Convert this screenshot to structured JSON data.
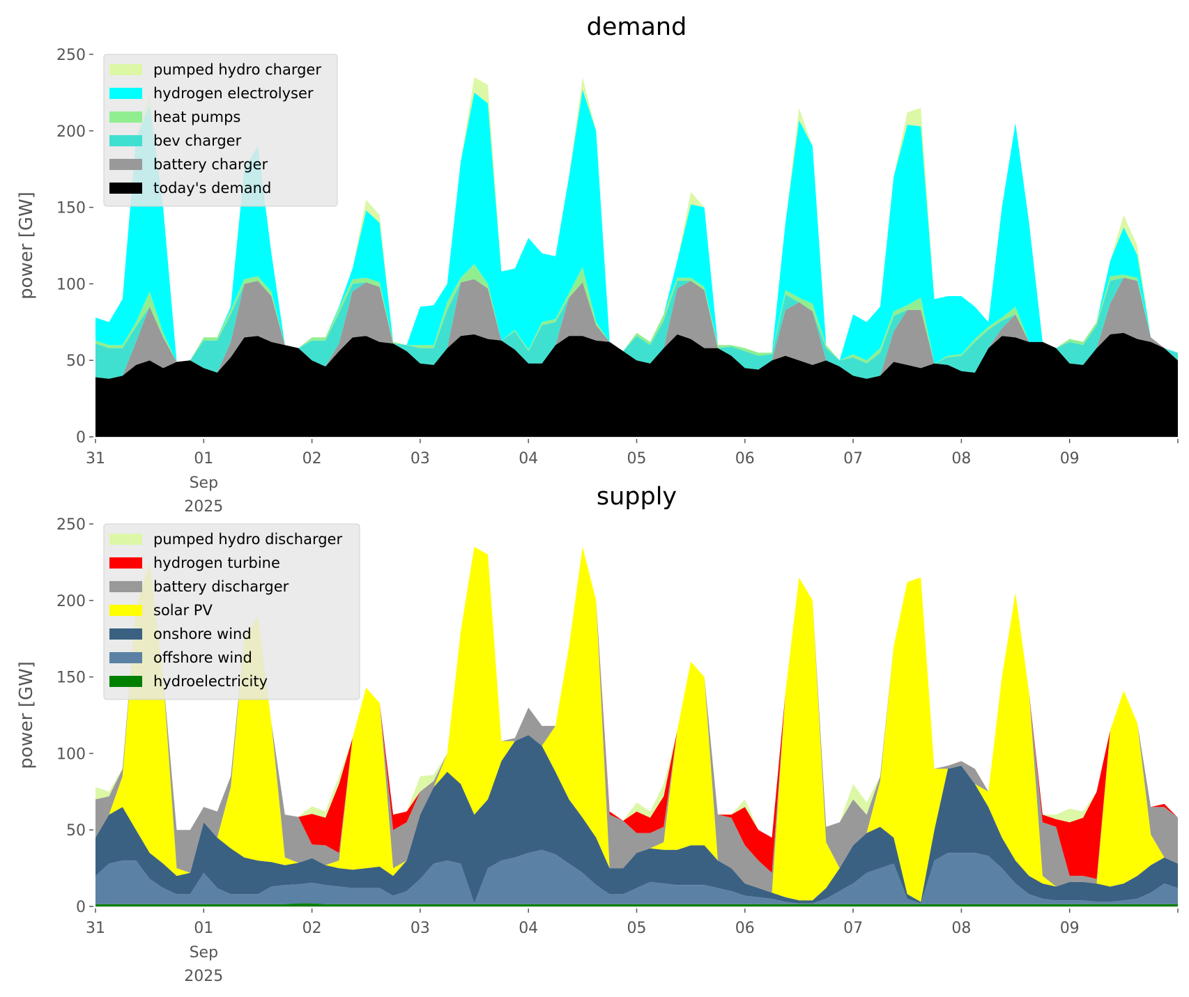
{
  "chart_data": [
    {
      "type": "area",
      "stacked": true,
      "title": "demand",
      "ylabel": "power [GW]",
      "xlabel": "",
      "ylim": [
        0,
        250
      ],
      "yticks": [
        0,
        50,
        100,
        150,
        200,
        250
      ],
      "xlim": [
        "2025-08-31T00:00",
        "2025-09-10T00:00"
      ],
      "xtick_labels": [
        "31",
        "01",
        "02",
        "03",
        "04",
        "05",
        "06",
        "07",
        "08",
        "09"
      ],
      "xtick_sublabels": {
        "month": "Sep",
        "year": "2025"
      },
      "grid": false,
      "legend_placement": "top-left",
      "series": [
        {
          "name": "today's demand",
          "color": "#000000",
          "values": [
            39,
            38,
            40,
            47,
            50,
            45,
            49,
            50,
            45,
            42,
            52,
            65,
            66,
            62,
            60,
            58,
            50,
            46,
            56,
            65,
            66,
            62,
            61,
            56,
            48,
            47,
            58,
            66,
            67,
            64,
            63,
            57,
            48,
            48,
            60,
            66,
            66,
            63,
            62,
            56,
            50,
            48,
            58,
            67,
            64,
            58,
            58,
            53,
            45,
            44,
            50,
            53,
            50,
            47,
            50,
            46,
            40,
            38,
            40,
            49,
            47,
            45,
            48,
            47,
            43,
            42,
            58,
            66,
            65,
            62,
            62,
            58,
            48,
            47,
            58,
            67,
            68,
            64,
            62,
            58,
            50
          ]
        },
        {
          "name": "battery charger",
          "color": "#999999",
          "values": [
            0,
            0,
            0,
            15,
            35,
            20,
            0,
            0,
            0,
            0,
            10,
            35,
            36,
            30,
            0,
            0,
            0,
            0,
            5,
            30,
            35,
            36,
            0,
            0,
            0,
            0,
            0,
            35,
            36,
            33,
            0,
            0,
            0,
            0,
            0,
            25,
            35,
            10,
            0,
            0,
            0,
            0,
            0,
            30,
            38,
            38,
            0,
            0,
            0,
            0,
            0,
            30,
            38,
            35,
            0,
            0,
            0,
            0,
            0,
            20,
            36,
            38,
            0,
            0,
            0,
            0,
            0,
            5,
            15,
            0,
            0,
            0,
            0,
            0,
            0,
            20,
            36,
            38,
            3,
            0,
            0
          ]
        },
        {
          "name": "bev charger",
          "color": "#40e0d0",
          "values": [
            22,
            20,
            18,
            10,
            0,
            0,
            0,
            0,
            18,
            21,
            18,
            0,
            0,
            0,
            0,
            0,
            13,
            17,
            20,
            5,
            0,
            0,
            0,
            4,
            10,
            11,
            25,
            0,
            0,
            0,
            0,
            12,
            8,
            25,
            15,
            0,
            0,
            0,
            0,
            0,
            16,
            12,
            18,
            5,
            0,
            0,
            0,
            6,
            11,
            9,
            4,
            10,
            0,
            0,
            8,
            4,
            12,
            10,
            15,
            10,
            0,
            0,
            0,
            5,
            10,
            20,
            12,
            5,
            0,
            0,
            0,
            0,
            14,
            13,
            15,
            15,
            0,
            0,
            0,
            0,
            5
          ]
        },
        {
          "name": "heat pumps",
          "color": "#90ee90",
          "values": [
            2,
            2,
            2,
            3,
            10,
            3,
            0,
            0,
            2,
            2,
            3,
            3,
            3,
            3,
            0,
            0,
            2,
            2,
            3,
            3,
            3,
            3,
            1,
            0,
            2,
            2,
            5,
            3,
            10,
            3,
            0,
            1,
            1,
            2,
            2,
            3,
            10,
            2,
            0,
            0,
            2,
            2,
            4,
            2,
            2,
            2,
            2,
            1,
            2,
            2,
            1,
            3,
            3,
            5,
            2,
            0,
            2,
            2,
            3,
            3,
            3,
            8,
            0,
            1,
            1,
            2,
            2,
            2,
            5,
            0,
            0,
            0,
            2,
            2,
            2,
            3,
            2,
            2,
            0,
            0,
            0
          ]
        },
        {
          "name": "hydrogen electrolyser",
          "color": "#00ffff",
          "values": [
            15,
            15,
            30,
            120,
            122,
            82,
            0,
            0,
            0,
            0,
            2,
            72,
            85,
            25,
            0,
            0,
            0,
            0,
            1,
            7,
            44,
            39,
            0,
            0,
            25,
            26,
            12,
            76,
            112,
            118,
            45,
            40,
            73,
            45,
            41,
            76,
            116,
            125,
            0,
            0,
            0,
            0,
            0,
            11,
            48,
            52,
            0,
            0,
            0,
            0,
            0,
            44,
            116,
            103,
            0,
            0,
            26,
            25,
            27,
            88,
            118,
            112,
            42,
            39,
            38,
            21,
            3,
            72,
            120,
            78,
            0,
            0,
            0,
            0,
            0,
            10,
            31,
            15,
            0,
            0,
            0
          ]
        },
        {
          "name": "pumped hydro charger",
          "color": "#dcf7a6",
          "values": [
            0,
            0,
            0,
            0,
            8,
            0,
            0,
            0,
            0,
            0,
            0,
            0,
            0,
            0,
            0,
            0,
            0,
            0,
            0,
            0,
            7,
            5,
            0,
            0,
            0,
            0,
            0,
            0,
            10,
            12,
            0,
            0,
            0,
            0,
            0,
            0,
            8,
            0,
            0,
            0,
            0,
            0,
            0,
            0,
            8,
            0,
            0,
            0,
            0,
            0,
            0,
            0,
            8,
            0,
            0,
            0,
            0,
            0,
            0,
            0,
            8,
            12,
            0,
            0,
            0,
            0,
            0,
            0,
            0,
            0,
            0,
            0,
            0,
            0,
            0,
            0,
            8,
            6,
            0,
            0,
            0
          ]
        }
      ]
    },
    {
      "type": "area",
      "stacked": true,
      "title": "supply",
      "ylabel": "power [GW]",
      "xlabel": "",
      "ylim": [
        0,
        250
      ],
      "yticks": [
        0,
        50,
        100,
        150,
        200,
        250
      ],
      "xlim": [
        "2025-08-31T00:00",
        "2025-09-10T00:00"
      ],
      "xtick_labels": [
        "31",
        "01",
        "02",
        "03",
        "04",
        "05",
        "06",
        "07",
        "08",
        "09"
      ],
      "xtick_sublabels": {
        "month": "Sep",
        "year": "2025"
      },
      "grid": false,
      "legend_placement": "top-left",
      "series": [
        {
          "name": "hydroelectricity",
          "color": "#008000",
          "values": [
            1.5,
            1.5,
            1.5,
            1.5,
            1.5,
            1.5,
            1.5,
            1.5,
            1.5,
            1.5,
            1.5,
            1.5,
            1.5,
            1.5,
            1.5,
            2,
            2,
            1.5,
            1.5,
            1.5,
            1.5,
            1.5,
            1.5,
            1.5,
            1.5,
            1.5,
            1.5,
            1.5,
            1.5,
            1.5,
            1.5,
            1.5,
            1.5,
            1.5,
            1.5,
            1.5,
            1.5,
            1.5,
            1.5,
            1.5,
            1.5,
            1.5,
            1.5,
            1.5,
            1.5,
            1.5,
            1.5,
            1.5,
            1.5,
            1.5,
            1.5,
            1.5,
            1.5,
            1.5,
            1.5,
            1.5,
            1.5,
            1.5,
            1.5,
            1.5,
            1.5,
            1.5,
            1.5,
            1.5,
            1.5,
            1.5,
            1.5,
            1.5,
            1.5,
            1.5,
            1.5,
            1.5,
            1.5,
            1.5,
            1.5,
            1.5,
            1.5,
            1.5,
            1.5,
            1.5,
            1.5
          ]
        },
        {
          "name": "offshore wind",
          "color": "#5b82a5",
          "values": [
            18.5,
            26.5,
            28.5,
            28.5,
            16.5,
            10.5,
            6.5,
            6.5,
            20.5,
            10.5,
            6.5,
            6.5,
            6.5,
            11.5,
            12.5,
            12.5,
            13.5,
            12.5,
            11.5,
            10.5,
            10.5,
            10.5,
            5.5,
            8.5,
            16.5,
            26.5,
            28.5,
            26.5,
            0.5,
            23.5,
            28.5,
            30.5,
            33.5,
            35.5,
            32.5,
            26.5,
            20.5,
            12.5,
            6.5,
            6.5,
            10.5,
            14.5,
            13.5,
            12.5,
            12.5,
            12.5,
            10.5,
            8.5,
            5.5,
            4.5,
            3.5,
            1.5,
            0.5,
            0.5,
            3.5,
            8.5,
            13.5,
            20.5,
            23.5,
            26.5,
            3.5,
            0.5,
            28.5,
            33.5,
            33.5,
            33.5,
            31.5,
            23.5,
            13.5,
            6.5,
            3.5,
            2.5,
            2.5,
            2.5,
            1.5,
            1.5,
            2.5,
            3.5,
            7.5,
            13.5,
            10.5
          ]
        },
        {
          "name": "onshore wind",
          "color": "#3b6182",
          "values": [
            25,
            32,
            35,
            20,
            17,
            16,
            12,
            14,
            33,
            33,
            30,
            24,
            22,
            16,
            13,
            14,
            16,
            13,
            12,
            12,
            13,
            14,
            13,
            20,
            42,
            50,
            58,
            52,
            58,
            45,
            65,
            76,
            77,
            68,
            54,
            42,
            36,
            31,
            17,
            17,
            23,
            22,
            22,
            23,
            26,
            26,
            18,
            15,
            8,
            6,
            4,
            3,
            2,
            2,
            7,
            15,
            25,
            26,
            27,
            17,
            3,
            1,
            20,
            55,
            57,
            45,
            32,
            20,
            15,
            12,
            10,
            9,
            12,
            12,
            12,
            10,
            11,
            15,
            18,
            17,
            16
          ]
        },
        {
          "name": "solar PV",
          "color": "#ffff00",
          "values": [
            0,
            0,
            20,
            145,
            190,
            122,
            5,
            0,
            0,
            0,
            40,
            143,
            160,
            91,
            5,
            0,
            0,
            0,
            5,
            86,
            118,
            107,
            5,
            0,
            0,
            0,
            12,
            100,
            175,
            160,
            13,
            0,
            0,
            0,
            30,
            100,
            177,
            155,
            0,
            0,
            0,
            0,
            5,
            78,
            120,
            110,
            0,
            0,
            0,
            0,
            0,
            134,
            211,
            196,
            30,
            0,
            0,
            0,
            30,
            125,
            204,
            212,
            40,
            0,
            0,
            0,
            10,
            105,
            175,
            120,
            5,
            0,
            0,
            0,
            0,
            102,
            126,
            100,
            20,
            0,
            0
          ]
        },
        {
          "name": "battery discharger",
          "color": "#999999",
          "values": [
            25,
            12,
            5,
            0,
            0,
            0,
            25,
            28,
            10,
            17,
            7,
            0,
            0,
            0,
            28,
            30,
            9,
            13,
            5,
            0,
            0,
            0,
            25,
            25,
            15,
            4,
            0,
            0,
            0,
            0,
            0,
            2,
            18,
            13,
            0,
            0,
            0,
            0,
            35,
            31,
            13,
            10,
            10,
            0,
            0,
            0,
            30,
            33,
            25,
            18,
            13,
            0,
            0,
            0,
            10,
            30,
            30,
            12,
            3,
            0,
            0,
            0,
            0,
            2,
            3,
            10,
            0,
            0,
            0,
            0,
            35,
            39,
            4,
            4,
            3,
            0,
            0,
            0,
            18,
            33,
            30
          ]
        },
        {
          "name": "hydrogen turbine",
          "color": "#ff0000",
          "values": [
            0,
            0,
            0,
            0,
            0,
            0,
            0,
            0,
            0,
            0,
            0,
            0,
            0,
            0,
            0,
            0,
            20,
            18,
            45,
            0,
            0,
            0,
            10,
            7,
            0,
            0,
            0,
            0,
            0,
            0,
            0,
            0,
            0,
            0,
            0,
            0,
            0,
            0,
            2,
            0,
            14,
            10,
            20,
            0,
            0,
            0,
            0,
            2,
            25,
            20,
            23,
            0,
            0,
            0,
            0,
            0,
            0,
            0,
            0,
            0,
            0,
            0,
            0,
            0,
            0,
            0,
            0,
            0,
            0,
            0,
            5,
            5,
            35,
            38,
            57,
            0,
            0,
            0,
            0,
            2,
            0
          ]
        },
        {
          "name": "pumped hydro discharger",
          "color": "#dcf7a6",
          "values": [
            8,
            3,
            0,
            0,
            0,
            0,
            0,
            0,
            0,
            0,
            0,
            0,
            0,
            0,
            0,
            0,
            5,
            4,
            5,
            0,
            0,
            0,
            0,
            0,
            10,
            4,
            0,
            0,
            0,
            0,
            0,
            0,
            0,
            0,
            0,
            0,
            0,
            0,
            0,
            0,
            6,
            4,
            8,
            0,
            0,
            0,
            0,
            0,
            5,
            0,
            0,
            0,
            0,
            0,
            0,
            0,
            10,
            8,
            0,
            0,
            0,
            0,
            0,
            0,
            0,
            0,
            0,
            0,
            0,
            0,
            0,
            3,
            9,
            4,
            0,
            0,
            0,
            0,
            0,
            0,
            0
          ]
        }
      ]
    }
  ],
  "x": {
    "start": "2025-08-31T00:00",
    "interval_hours": 3
  }
}
